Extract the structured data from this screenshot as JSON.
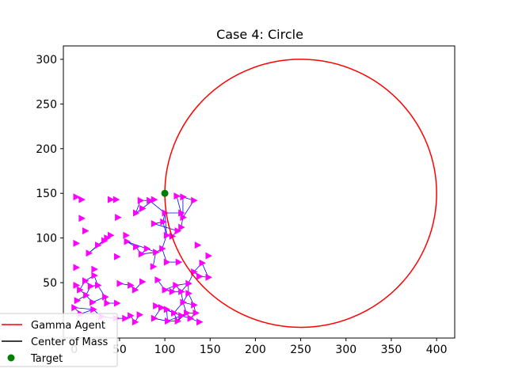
{
  "chart_data": {
    "type": "scatter",
    "title": "Case 4: Circle",
    "xlabel": "",
    "ylabel": "",
    "xlim": [
      -12,
      420
    ],
    "ylim": [
      -12,
      315
    ],
    "xticks": [
      0,
      50,
      100,
      150,
      200,
      250,
      300,
      350,
      400
    ],
    "yticks": [
      50,
      100,
      150,
      200,
      250,
      300
    ],
    "grid": false,
    "legend": {
      "placement": "bottom-left",
      "entries": [
        {
          "label": "Gamma Agent",
          "marker": "line",
          "color": "#ff0000"
        },
        {
          "label": "Center of Mass",
          "marker": "line",
          "color": "#000000"
        },
        {
          "label": "Target",
          "marker": "dot",
          "color": "#008000"
        }
      ]
    },
    "gamma_agent_circle": {
      "center": [
        250,
        150
      ],
      "radius": 150,
      "color": "#ff0000"
    },
    "target": {
      "x": 100,
      "y": 150,
      "color": "#008000"
    },
    "agent_color": "#ff00ff",
    "edge_color": "#0000ff",
    "agents": [
      [
        2,
        146
      ],
      [
        8,
        143
      ],
      [
        40,
        143
      ],
      [
        46,
        143
      ],
      [
        73,
        142
      ],
      [
        83,
        142
      ],
      [
        88,
        143
      ],
      [
        113,
        147
      ],
      [
        120,
        146
      ],
      [
        132,
        142
      ],
      [
        8,
        122
      ],
      [
        48,
        123
      ],
      [
        68,
        128
      ],
      [
        75,
        133
      ],
      [
        100,
        128
      ],
      [
        118,
        128
      ],
      [
        120,
        123
      ],
      [
        12,
        108
      ],
      [
        2,
        94
      ],
      [
        16,
        83
      ],
      [
        26,
        92
      ],
      [
        33,
        97
      ],
      [
        36,
        100
      ],
      [
        40,
        103
      ],
      [
        57,
        103
      ],
      [
        88,
        116
      ],
      [
        98,
        118
      ],
      [
        102,
        103
      ],
      [
        108,
        102
      ],
      [
        114,
        108
      ],
      [
        118,
        112
      ],
      [
        2,
        67
      ],
      [
        22,
        65
      ],
      [
        47,
        79
      ],
      [
        58,
        96
      ],
      [
        68,
        90
      ],
      [
        74,
        82
      ],
      [
        80,
        88
      ],
      [
        90,
        84
      ],
      [
        97,
        88
      ],
      [
        102,
        73
      ],
      [
        115,
        73
      ],
      [
        136,
        92
      ],
      [
        141,
        72
      ],
      [
        148,
        80
      ],
      [
        132,
        62
      ],
      [
        138,
        57
      ],
      [
        148,
        56
      ],
      [
        87,
        68
      ],
      [
        2,
        47
      ],
      [
        6,
        42
      ],
      [
        12,
        52
      ],
      [
        18,
        46
      ],
      [
        26,
        47
      ],
      [
        22,
        58
      ],
      [
        34,
        34
      ],
      [
        13,
        36
      ],
      [
        3,
        30
      ],
      [
        20,
        28
      ],
      [
        36,
        27
      ],
      [
        47,
        27
      ],
      [
        50,
        49
      ],
      [
        62,
        47
      ],
      [
        67,
        42
      ],
      [
        75,
        51
      ],
      [
        92,
        53
      ],
      [
        100,
        42
      ],
      [
        112,
        47
      ],
      [
        108,
        40
      ],
      [
        126,
        49
      ],
      [
        118,
        40
      ],
      [
        126,
        38
      ],
      [
        120,
        28
      ],
      [
        132,
        25
      ],
      [
        0,
        22
      ],
      [
        7,
        15
      ],
      [
        21,
        20
      ],
      [
        30,
        12
      ],
      [
        46,
        10
      ],
      [
        56,
        10
      ],
      [
        62,
        13
      ],
      [
        67,
        6
      ],
      [
        72,
        14
      ],
      [
        90,
        24
      ],
      [
        96,
        22
      ],
      [
        102,
        20
      ],
      [
        110,
        16
      ],
      [
        114,
        7
      ],
      [
        118,
        13
      ],
      [
        124,
        16
      ],
      [
        128,
        10
      ],
      [
        134,
        16
      ],
      [
        88,
        10
      ],
      [
        103,
        7
      ],
      [
        138,
        6
      ]
    ],
    "edges": [
      [
        [
          2,
          146
        ],
        [
          8,
          143
        ]
      ],
      [
        [
          40,
          143
        ],
        [
          46,
          143
        ]
      ],
      [
        [
          73,
          142
        ],
        [
          83,
          142
        ]
      ],
      [
        [
          83,
          142
        ],
        [
          88,
          143
        ]
      ],
      [
        [
          73,
          142
        ],
        [
          68,
          128
        ]
      ],
      [
        [
          68,
          128
        ],
        [
          75,
          133
        ]
      ],
      [
        [
          75,
          133
        ],
        [
          88,
          143
        ]
      ],
      [
        [
          83,
          142
        ],
        [
          100,
          128
        ]
      ],
      [
        [
          100,
          128
        ],
        [
          118,
          128
        ]
      ],
      [
        [
          113,
          147
        ],
        [
          120,
          146
        ]
      ],
      [
        [
          120,
          146
        ],
        [
          132,
          142
        ]
      ],
      [
        [
          113,
          147
        ],
        [
          118,
          128
        ]
      ],
      [
        [
          118,
          128
        ],
        [
          120,
          123
        ]
      ],
      [
        [
          120,
          146
        ],
        [
          120,
          123
        ]
      ],
      [
        [
          132,
          142
        ],
        [
          120,
          123
        ]
      ],
      [
        [
          88,
          116
        ],
        [
          98,
          118
        ]
      ],
      [
        [
          98,
          118
        ],
        [
          100,
          128
        ]
      ],
      [
        [
          98,
          118
        ],
        [
          102,
          103
        ]
      ],
      [
        [
          102,
          103
        ],
        [
          108,
          102
        ]
      ],
      [
        [
          108,
          102
        ],
        [
          114,
          108
        ]
      ],
      [
        [
          114,
          108
        ],
        [
          118,
          112
        ]
      ],
      [
        [
          118,
          112
        ],
        [
          120,
          123
        ]
      ],
      [
        [
          100,
          128
        ],
        [
          102,
          103
        ]
      ],
      [
        [
          88,
          116
        ],
        [
          114,
          108
        ]
      ],
      [
        [
          16,
          83
        ],
        [
          26,
          92
        ]
      ],
      [
        [
          26,
          92
        ],
        [
          33,
          97
        ]
      ],
      [
        [
          33,
          97
        ],
        [
          36,
          100
        ]
      ],
      [
        [
          36,
          100
        ],
        [
          40,
          103
        ]
      ],
      [
        [
          16,
          83
        ],
        [
          36,
          100
        ]
      ],
      [
        [
          26,
          92
        ],
        [
          40,
          103
        ]
      ],
      [
        [
          58,
          96
        ],
        [
          68,
          90
        ]
      ],
      [
        [
          68,
          90
        ],
        [
          74,
          82
        ]
      ],
      [
        [
          74,
          82
        ],
        [
          80,
          88
        ]
      ],
      [
        [
          80,
          88
        ],
        [
          90,
          84
        ]
      ],
      [
        [
          90,
          84
        ],
        [
          97,
          88
        ]
      ],
      [
        [
          58,
          96
        ],
        [
          80,
          88
        ]
      ],
      [
        [
          74,
          82
        ],
        [
          90,
          84
        ]
      ],
      [
        [
          102,
          103
        ],
        [
          97,
          88
        ]
      ],
      [
        [
          97,
          88
        ],
        [
          102,
          73
        ]
      ],
      [
        [
          102,
          73
        ],
        [
          115,
          73
        ]
      ],
      [
        [
          90,
          84
        ],
        [
          87,
          68
        ]
      ],
      [
        [
          132,
          62
        ],
        [
          138,
          57
        ]
      ],
      [
        [
          138,
          57
        ],
        [
          148,
          56
        ]
      ],
      [
        [
          141,
          72
        ],
        [
          132,
          62
        ]
      ],
      [
        [
          141,
          72
        ],
        [
          148,
          56
        ]
      ],
      [
        [
          132,
          62
        ],
        [
          126,
          49
        ]
      ],
      [
        [
          2,
          47
        ],
        [
          6,
          42
        ]
      ],
      [
        [
          6,
          42
        ],
        [
          12,
          52
        ]
      ],
      [
        [
          12,
          52
        ],
        [
          18,
          46
        ]
      ],
      [
        [
          18,
          46
        ],
        [
          26,
          47
        ]
      ],
      [
        [
          26,
          47
        ],
        [
          22,
          58
        ]
      ],
      [
        [
          22,
          58
        ],
        [
          12,
          52
        ]
      ],
      [
        [
          18,
          46
        ],
        [
          13,
          36
        ]
      ],
      [
        [
          13,
          36
        ],
        [
          3,
          30
        ]
      ],
      [
        [
          13,
          36
        ],
        [
          20,
          28
        ]
      ],
      [
        [
          20,
          28
        ],
        [
          34,
          34
        ]
      ],
      [
        [
          34,
          34
        ],
        [
          26,
          47
        ]
      ],
      [
        [
          34,
          34
        ],
        [
          36,
          27
        ]
      ],
      [
        [
          36,
          27
        ],
        [
          47,
          27
        ]
      ],
      [
        [
          6,
          42
        ],
        [
          13,
          36
        ]
      ],
      [
        [
          50,
          49
        ],
        [
          62,
          47
        ]
      ],
      [
        [
          62,
          47
        ],
        [
          67,
          42
        ]
      ],
      [
        [
          67,
          42
        ],
        [
          75,
          51
        ]
      ],
      [
        [
          92,
          53
        ],
        [
          100,
          42
        ]
      ],
      [
        [
          100,
          42
        ],
        [
          112,
          47
        ]
      ],
      [
        [
          112,
          47
        ],
        [
          108,
          40
        ]
      ],
      [
        [
          108,
          40
        ],
        [
          118,
          40
        ]
      ],
      [
        [
          118,
          40
        ],
        [
          126,
          49
        ]
      ],
      [
        [
          126,
          49
        ],
        [
          126,
          38
        ]
      ],
      [
        [
          126,
          38
        ],
        [
          120,
          28
        ]
      ],
      [
        [
          120,
          28
        ],
        [
          132,
          25
        ]
      ],
      [
        [
          112,
          47
        ],
        [
          126,
          49
        ]
      ],
      [
        [
          100,
          42
        ],
        [
          108,
          40
        ]
      ],
      [
        [
          118,
          40
        ],
        [
          120,
          28
        ]
      ],
      [
        [
          126,
          38
        ],
        [
          132,
          25
        ]
      ],
      [
        [
          112,
          47
        ],
        [
          118,
          40
        ]
      ],
      [
        [
          0,
          22
        ],
        [
          7,
          15
        ]
      ],
      [
        [
          7,
          15
        ],
        [
          21,
          20
        ]
      ],
      [
        [
          21,
          20
        ],
        [
          30,
          12
        ]
      ],
      [
        [
          30,
          12
        ],
        [
          46,
          10
        ]
      ],
      [
        [
          46,
          10
        ],
        [
          56,
          10
        ]
      ],
      [
        [
          56,
          10
        ],
        [
          62,
          13
        ]
      ],
      [
        [
          62,
          13
        ],
        [
          67,
          6
        ]
      ],
      [
        [
          67,
          6
        ],
        [
          72,
          14
        ]
      ],
      [
        [
          0,
          22
        ],
        [
          21,
          20
        ]
      ],
      [
        [
          90,
          24
        ],
        [
          96,
          22
        ]
      ],
      [
        [
          96,
          22
        ],
        [
          102,
          20
        ]
      ],
      [
        [
          102,
          20
        ],
        [
          110,
          16
        ]
      ],
      [
        [
          110,
          16
        ],
        [
          114,
          7
        ]
      ],
      [
        [
          114,
          7
        ],
        [
          118,
          13
        ]
      ],
      [
        [
          118,
          13
        ],
        [
          124,
          16
        ]
      ],
      [
        [
          124,
          16
        ],
        [
          128,
          10
        ]
      ],
      [
        [
          128,
          10
        ],
        [
          134,
          16
        ]
      ],
      [
        [
          88,
          10
        ],
        [
          103,
          7
        ]
      ],
      [
        [
          103,
          7
        ],
        [
          114,
          7
        ]
      ],
      [
        [
          90,
          24
        ],
        [
          102,
          20
        ]
      ],
      [
        [
          110,
          16
        ],
        [
          118,
          13
        ]
      ],
      [
        [
          124,
          16
        ],
        [
          134,
          16
        ]
      ],
      [
        [
          128,
          10
        ],
        [
          138,
          6
        ]
      ],
      [
        [
          96,
          22
        ],
        [
          110,
          16
        ]
      ],
      [
        [
          102,
          20
        ],
        [
          103,
          7
        ]
      ],
      [
        [
          118,
          13
        ],
        [
          128,
          10
        ]
      ],
      [
        [
          120,
          28
        ],
        [
          124,
          16
        ]
      ],
      [
        [
          132,
          25
        ],
        [
          134,
          16
        ]
      ],
      [
        [
          110,
          16
        ],
        [
          120,
          28
        ]
      ],
      [
        [
          114,
          7
        ],
        [
          124,
          16
        ]
      ],
      [
        [
          103,
          7
        ],
        [
          118,
          13
        ]
      ],
      [
        [
          88,
          10
        ],
        [
          96,
          22
        ]
      ]
    ]
  }
}
